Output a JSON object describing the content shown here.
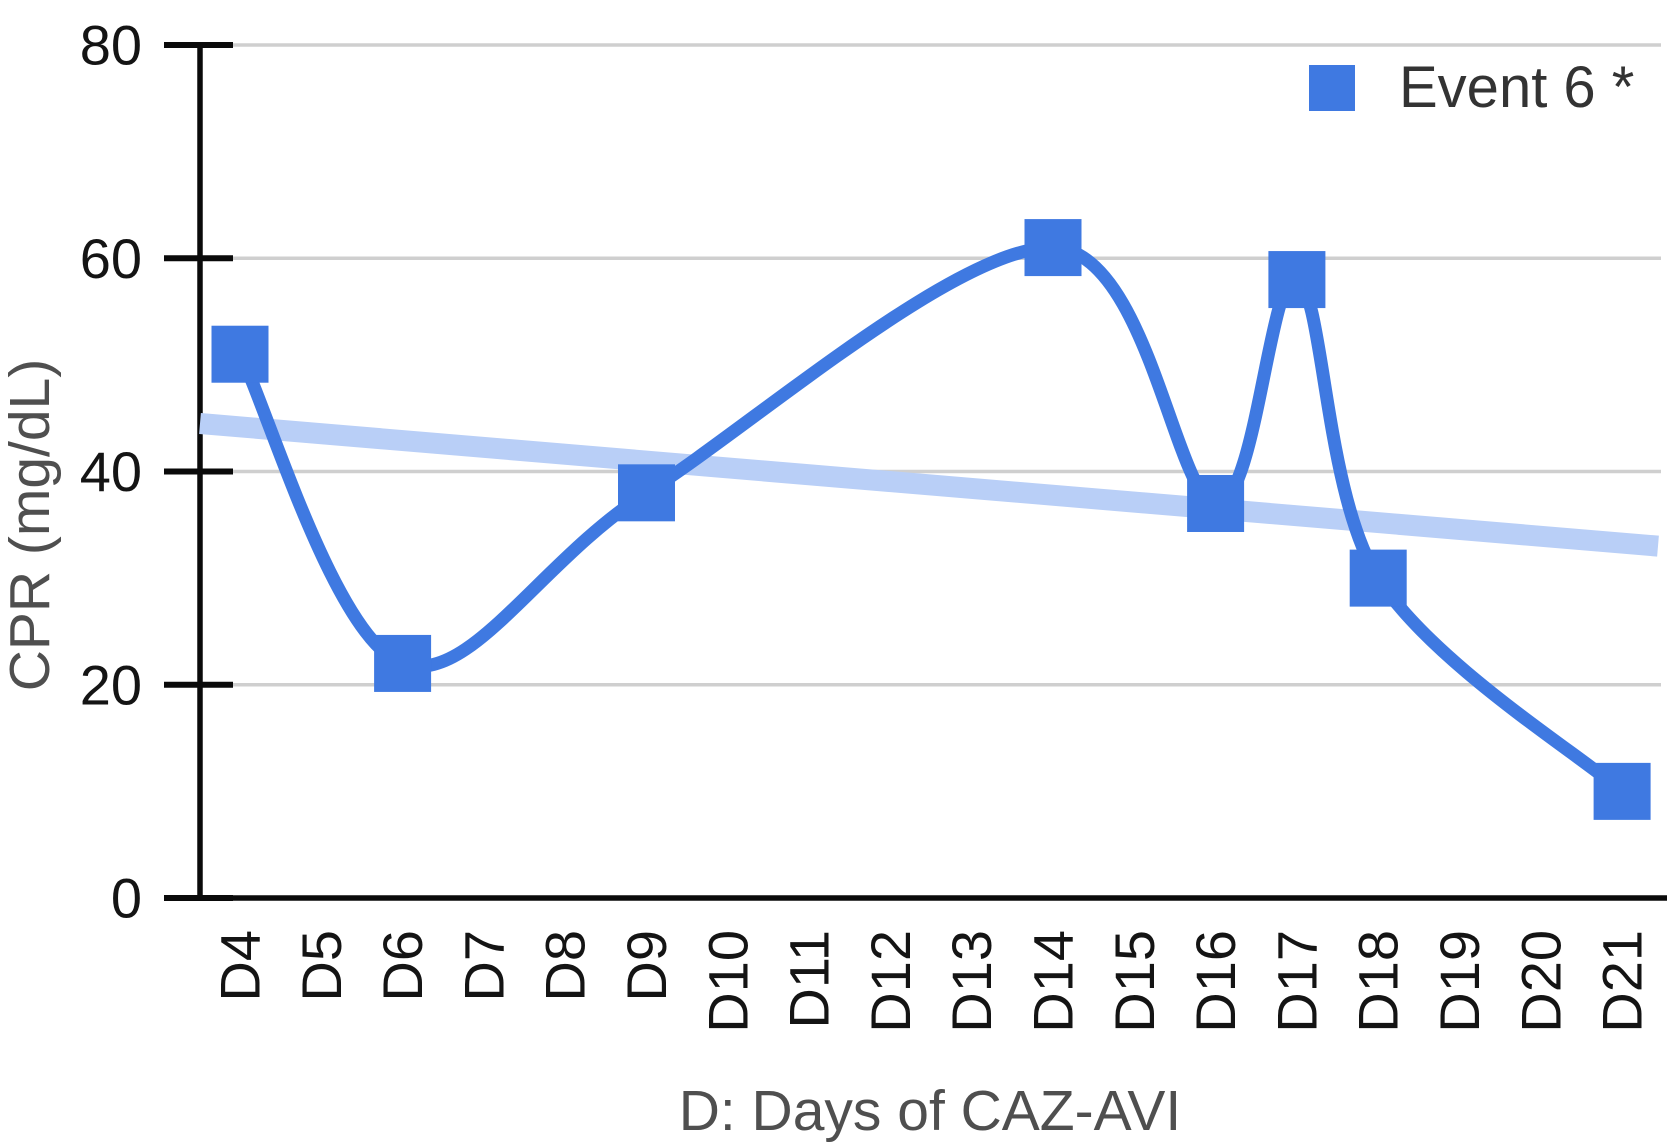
{
  "colors": {
    "series_blue": "#3f79e1",
    "trendline_blue": "#b9cff7",
    "gridline_grey": "#cfcfcf",
    "axis_black": "#0a0a0a",
    "tick_label_color": "#141414",
    "axis_title_color": "#4f4f4f",
    "legend_text_color": "#333333",
    "background": "#ffffff"
  },
  "legend": {
    "label": "Event 6 *"
  },
  "axes": {
    "x_title": "D: Days of CAZ-AVI",
    "y_title": "CPR (mg/dL)"
  },
  "chart_data": {
    "type": "line",
    "title": "",
    "xlabel": "D: Days of CAZ-AVI",
    "ylabel": "CPR (mg/dL)",
    "categories": [
      "D4",
      "D5",
      "D6",
      "D7",
      "D8",
      "D9",
      "D10",
      "D11",
      "D12",
      "D13",
      "D14",
      "D15",
      "D16",
      "D17",
      "D18",
      "D19",
      "D20",
      "D21"
    ],
    "y_ticks": [
      0,
      20,
      40,
      60,
      80
    ],
    "ylim": [
      0,
      80
    ],
    "grid": true,
    "legend_position": "top-right",
    "line_style": "smooth",
    "marker": "square",
    "series": [
      {
        "name": "Event 6 *",
        "points": [
          {
            "day": "D4",
            "value": 51
          },
          {
            "day": "D6",
            "value": 22
          },
          {
            "day": "D9",
            "value": 38
          },
          {
            "day": "D14",
            "value": 61
          },
          {
            "day": "D16",
            "value": 37
          },
          {
            "day": "D17",
            "value": 58
          },
          {
            "day": "D18",
            "value": 30
          },
          {
            "day": "D21",
            "value": 10
          }
        ]
      }
    ],
    "trendline": {
      "type": "linear",
      "start_value": 44.5,
      "end_value": 33
    }
  }
}
